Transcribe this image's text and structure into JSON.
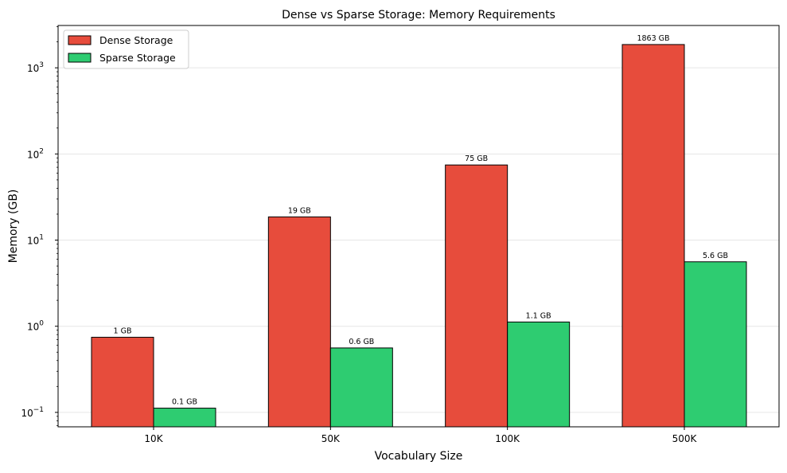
{
  "chart_data": {
    "type": "bar",
    "title": "Dense vs Sparse Storage: Memory Requirements",
    "xlabel": "Vocabulary Size",
    "ylabel": "Memory (GB)",
    "yscale": "log",
    "ylim": [
      0.068,
      3100
    ],
    "grid": {
      "axis": "y",
      "on": true
    },
    "legend_position": "upper left",
    "categories": [
      "10K",
      "50K",
      "100K",
      "500K"
    ],
    "series": [
      {
        "name": "Dense Storage",
        "color": "#e74c3c",
        "values": [
          0.745,
          18.6,
          74.5,
          1863
        ],
        "labels": [
          "1 GB",
          "19 GB",
          "75 GB",
          "1863 GB"
        ]
      },
      {
        "name": "Sparse Storage",
        "color": "#2ecc71",
        "values": [
          0.112,
          0.56,
          1.12,
          5.6
        ],
        "labels": [
          "0.1 GB",
          "0.6 GB",
          "1.1 GB",
          "5.6 GB"
        ]
      }
    ],
    "yticks": [
      {
        "base": "10",
        "exp": "−1",
        "value": 0.1
      },
      {
        "base": "10",
        "exp": "0",
        "value": 1
      },
      {
        "base": "10",
        "exp": "1",
        "value": 10
      },
      {
        "base": "10",
        "exp": "2",
        "value": 100
      },
      {
        "base": "10",
        "exp": "3",
        "value": 1000
      }
    ]
  }
}
